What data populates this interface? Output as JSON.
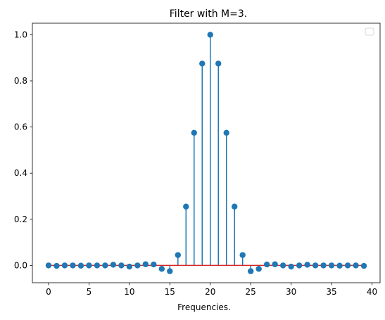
{
  "chart_data": {
    "type": "stem",
    "title": "Filter with M=3.",
    "xlabel": "Frequencies.",
    "ylabel": "",
    "xlim": [
      -2,
      41
    ],
    "ylim": [
      -0.075,
      1.05
    ],
    "xticks": [
      0,
      5,
      10,
      15,
      20,
      25,
      30,
      35,
      40
    ],
    "yticks": [
      0.0,
      0.2,
      0.4,
      0.6,
      0.8,
      1.0
    ],
    "xtick_labels": [
      "0",
      "5",
      "10",
      "15",
      "20",
      "25",
      "30",
      "35",
      "40"
    ],
    "ytick_labels": [
      "0.0",
      "0.2",
      "0.4",
      "0.6",
      "0.8",
      "1.0"
    ],
    "legend": "upper right (empty)",
    "grid": false,
    "colors": {
      "markers": "#1f77b4",
      "stems": "#1f77b4",
      "baseline": "#d62728"
    },
    "x": [
      0,
      1,
      2,
      3,
      4,
      5,
      6,
      7,
      8,
      9,
      10,
      11,
      12,
      13,
      14,
      15,
      16,
      17,
      18,
      19,
      20,
      21,
      22,
      23,
      24,
      25,
      26,
      27,
      28,
      29,
      30,
      31,
      32,
      33,
      34,
      35,
      36,
      37,
      38,
      39
    ],
    "values": [
      0.0,
      -0.002,
      0.0,
      0.0,
      -0.001,
      0.0,
      0.0,
      0.0,
      0.003,
      0.0,
      -0.005,
      0.0,
      0.005,
      0.004,
      -0.015,
      -0.025,
      0.045,
      0.255,
      0.575,
      0.875,
      1.0,
      0.875,
      0.575,
      0.255,
      0.045,
      -0.025,
      -0.015,
      0.004,
      0.005,
      0.0,
      -0.005,
      0.0,
      0.003,
      0.0,
      0.0,
      0.0,
      -0.001,
      0.0,
      0.0,
      -0.002
    ]
  }
}
